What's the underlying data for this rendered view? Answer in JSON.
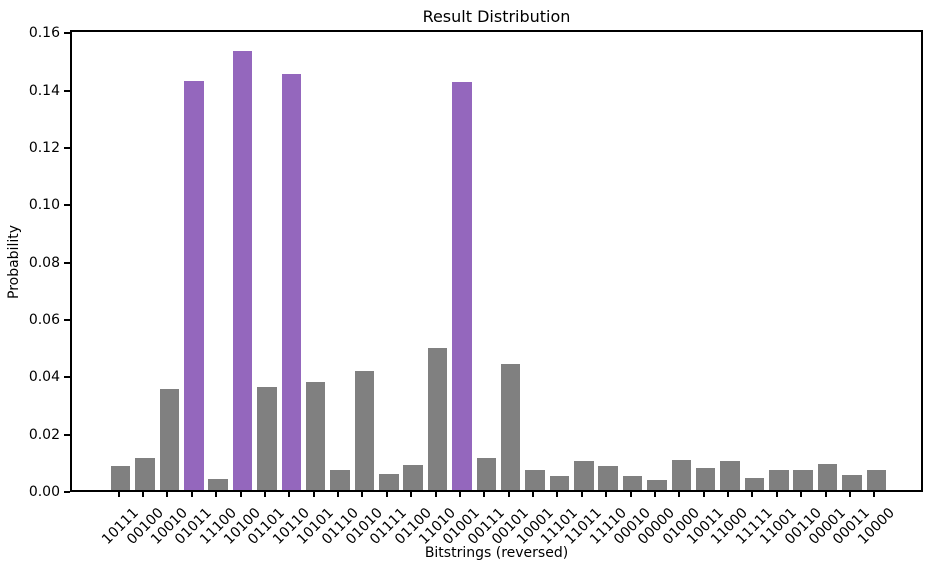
{
  "chart_data": {
    "type": "bar",
    "title": "Result Distribution",
    "xlabel": "Bitstrings (reversed)",
    "ylabel": "Probability",
    "ylim": [
      0,
      0.1612
    ],
    "ytick_labels": [
      "0.00",
      "0.02",
      "0.04",
      "0.06",
      "0.08",
      "0.10",
      "0.12",
      "0.14",
      "0.16"
    ],
    "grid": false,
    "legend": null,
    "categories": [
      "10111",
      "00100",
      "10010",
      "01011",
      "11100",
      "10100",
      "01101",
      "10110",
      "10101",
      "01110",
      "01010",
      "01111",
      "01100",
      "11010",
      "01001",
      "00111",
      "00101",
      "10001",
      "11101",
      "11011",
      "11110",
      "00010",
      "00000",
      "01000",
      "10011",
      "11000",
      "11111",
      "11001",
      "00110",
      "00001",
      "00011",
      "10000"
    ],
    "values": [
      0.0085,
      0.0112,
      0.0354,
      0.1428,
      0.0039,
      0.1533,
      0.0358,
      0.1453,
      0.0378,
      0.0069,
      0.0416,
      0.0057,
      0.0088,
      0.0496,
      0.1423,
      0.0112,
      0.044,
      0.0069,
      0.005,
      0.01,
      0.0085,
      0.0048,
      0.0035,
      0.0104,
      0.0078,
      0.0101,
      0.0043,
      0.0071,
      0.0069,
      0.0092,
      0.0051,
      0.0069
    ],
    "highlight_indices": [
      3,
      5,
      7,
      14
    ],
    "colors": {
      "bar": "#808080",
      "highlight": "#9467bd",
      "text": "#000000",
      "spine": "#000000",
      "background": "#ffffff"
    }
  }
}
